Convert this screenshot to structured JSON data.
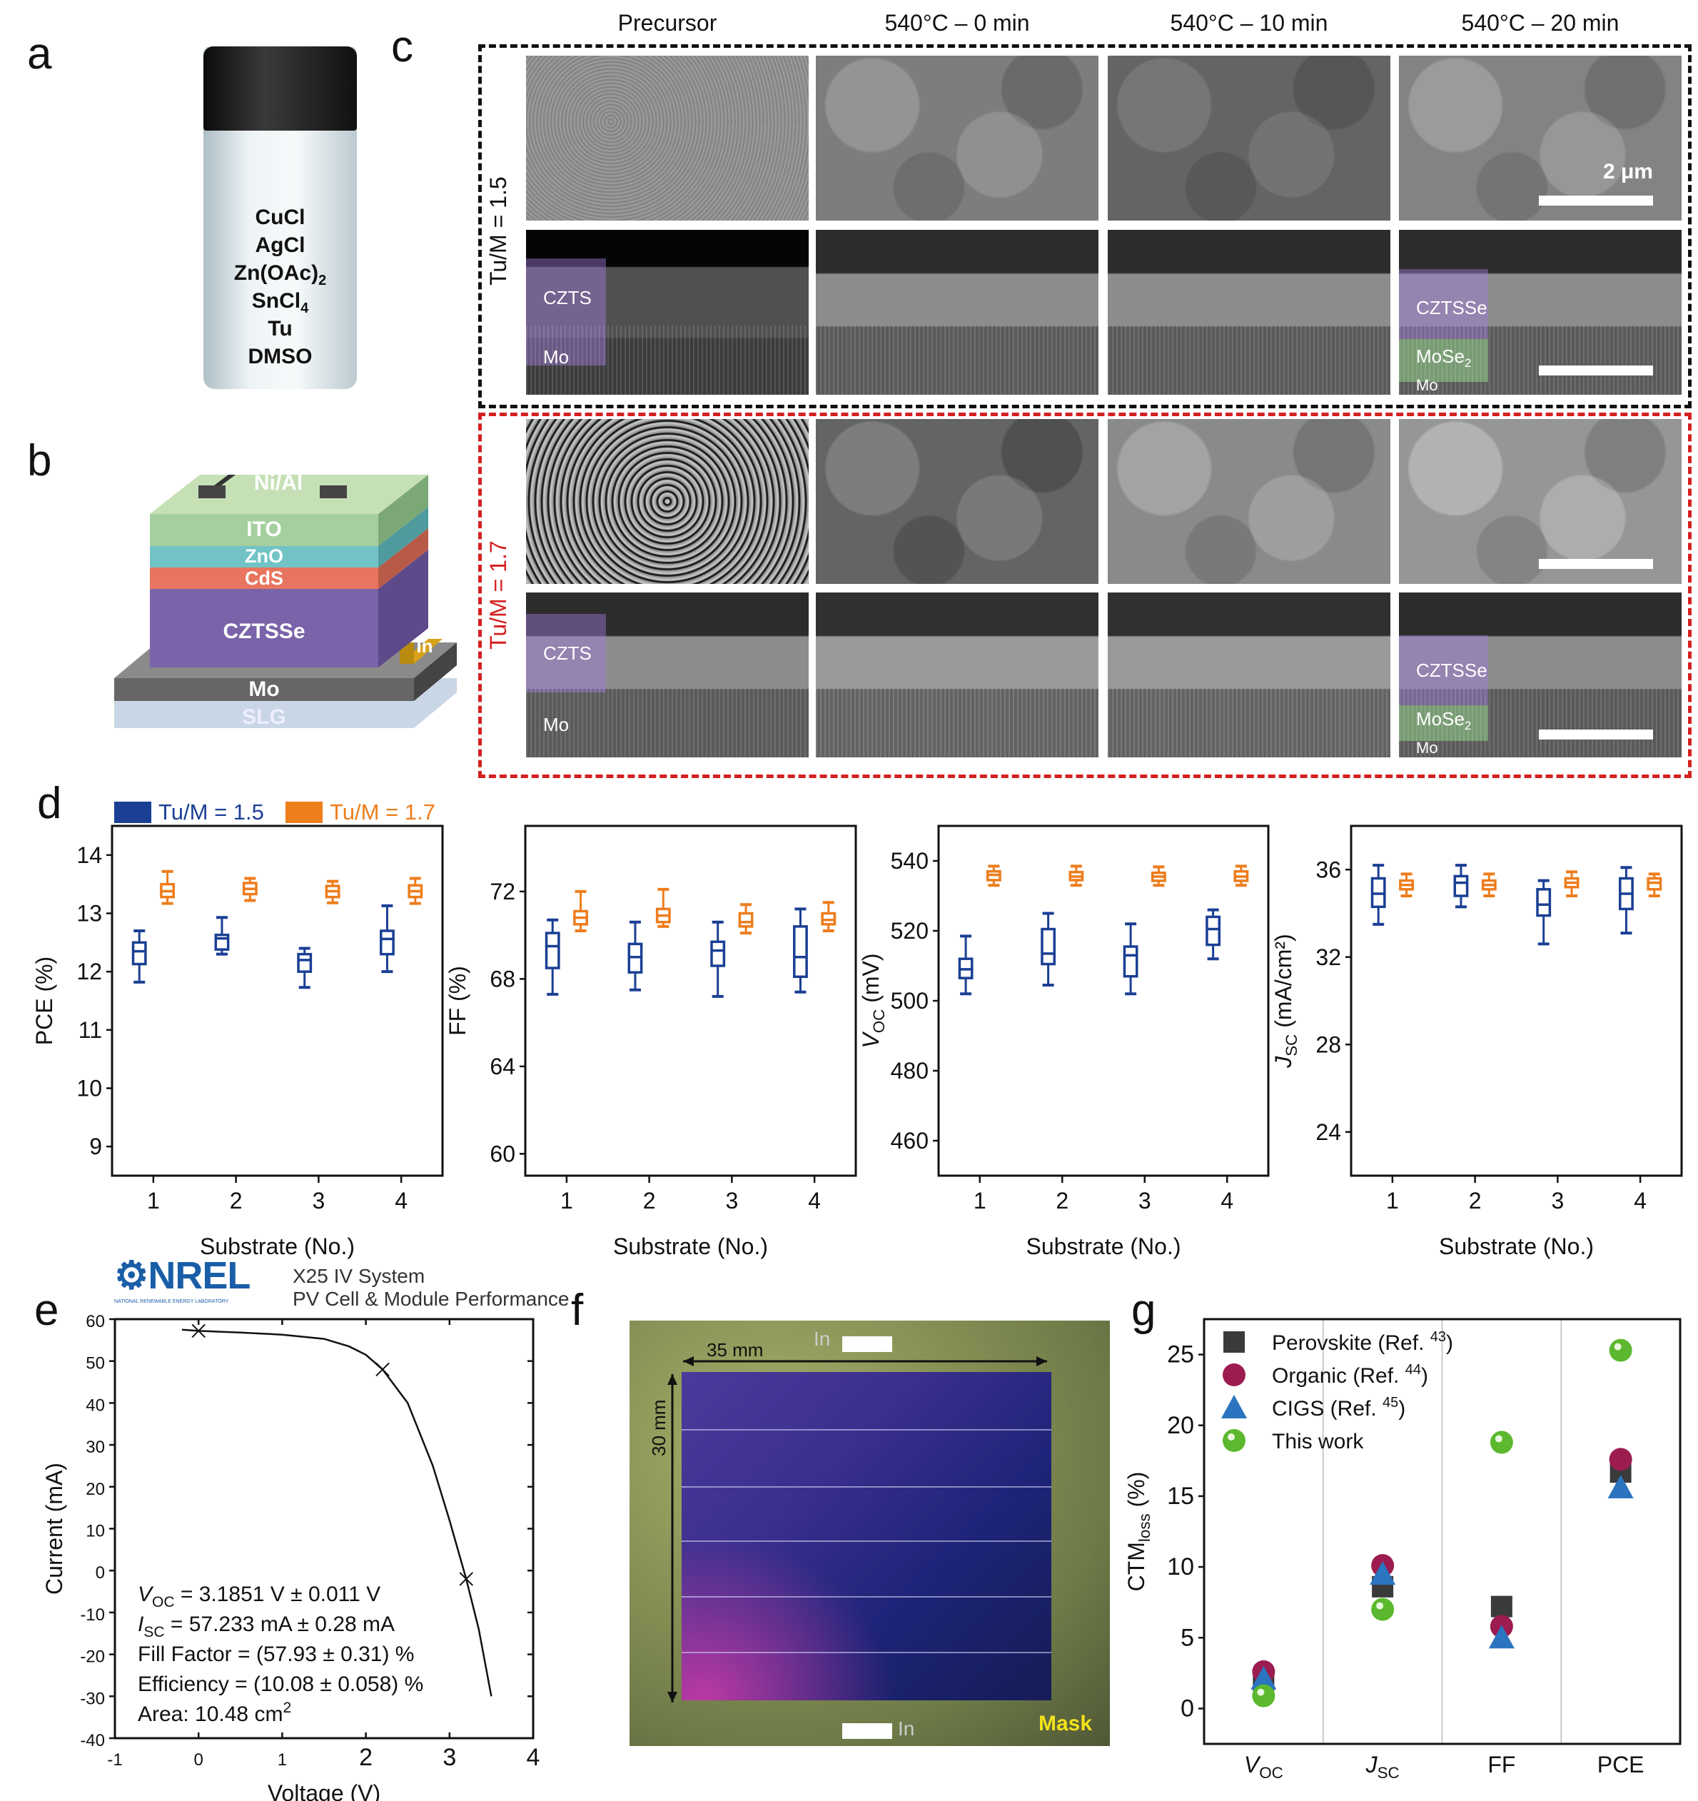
{
  "panels": {
    "a": "a",
    "b": "b",
    "c": "c",
    "d": "d",
    "e": "e",
    "f": "f",
    "g": "g"
  },
  "vial": {
    "lines": [
      "CuCl",
      "AgCl",
      "Zn(OAc)",
      "SnCl",
      "Tu",
      "DMSO"
    ],
    "subs": {
      "zn": "2",
      "sn": "4"
    }
  },
  "device": {
    "layers": [
      "Ni/Al",
      "ITO",
      "ZnO",
      "CdS",
      "CZTSSe",
      "In",
      "Mo",
      "SLG"
    ],
    "colors": {
      "top": "#b9d7a9",
      "ito": "#a6cfa0",
      "zno": "#71c3c6",
      "cds": "#e8755f",
      "czts": "#7a63a9",
      "in": "#d8a21b",
      "mo": "#6a6a6a",
      "slg": "#c9d6e6"
    }
  },
  "sem": {
    "columns": [
      "Precursor",
      "540°C – 0 min",
      "540°C – 10 min",
      "540°C – 20 min"
    ],
    "group1": "Tu/M = 1.5",
    "group2": "Tu/M = 1.7",
    "group_colors": {
      "g1": "#111111",
      "g2": "#d42020"
    },
    "labels": {
      "czts": "CZTS",
      "mo": "Mo",
      "cztsse": "CZTSSe",
      "mose": "MoSe",
      "mose_sub": "2"
    },
    "scalebar": "2 μm"
  },
  "legend_d": [
    {
      "name": "Tu/M = 1.5",
      "color": "#1a3f94"
    },
    {
      "name": "Tu/M = 1.7",
      "color": "#ee7d1c"
    }
  ],
  "nrel": {
    "logo": "NREL",
    "logo_sub": "NATIONAL RENEWABLE ENERGY LABORATORY",
    "system": "X25 IV System",
    "subtitle": "PV Cell & Module Performance"
  },
  "module": {
    "width_label": "35 mm",
    "height_label": "30 mm",
    "in_top": "In",
    "in_bottom": "In",
    "mask": "Mask"
  },
  "chart_data": [
    {
      "id": "pce",
      "type": "box",
      "categories": [
        "1",
        "2",
        "3",
        "4"
      ],
      "xlabel": "Substrate (No.)",
      "ylabel": {
        "main": "PCE (%)"
      },
      "ylim": [
        8.5,
        14.5
      ],
      "yticks": [
        9,
        10,
        11,
        12,
        13,
        14
      ],
      "series": [
        {
          "name": "Tu/M = 1.5",
          "color": "#1a3f94",
          "boxes": [
            [
              11.82,
              12.13,
              12.35,
              12.5,
              12.7
            ],
            [
              12.3,
              12.38,
              12.57,
              12.63,
              12.93
            ],
            [
              11.73,
              12.0,
              12.2,
              12.3,
              12.4
            ],
            [
              12.0,
              12.3,
              12.56,
              12.7,
              13.13
            ]
          ]
        },
        {
          "name": "Tu/M = 1.7",
          "color": "#ee7d1c",
          "boxes": [
            [
              13.17,
              13.28,
              13.38,
              13.5,
              13.72
            ],
            [
              13.22,
              13.33,
              13.42,
              13.52,
              13.6
            ],
            [
              13.18,
              13.28,
              13.38,
              13.47,
              13.55
            ],
            [
              13.17,
              13.28,
              13.38,
              13.48,
              13.6
            ]
          ]
        }
      ]
    },
    {
      "id": "ff",
      "type": "box",
      "categories": [
        "1",
        "2",
        "3",
        "4"
      ],
      "xlabel": "Substrate (No.)",
      "ylabel": {
        "main": "FF (%)"
      },
      "ylim": [
        59,
        75
      ],
      "yticks": [
        60,
        64,
        68,
        72
      ],
      "series": [
        {
          "name": "Tu/M = 1.5",
          "color": "#1a3f94",
          "boxes": [
            [
              67.3,
              68.5,
              69.5,
              70.1,
              70.7
            ],
            [
              67.5,
              68.3,
              69.0,
              69.6,
              70.6
            ],
            [
              67.2,
              68.6,
              69.3,
              69.7,
              70.6
            ],
            [
              67.4,
              68.1,
              69.0,
              70.4,
              71.2
            ]
          ]
        },
        {
          "name": "Tu/M = 1.7",
          "color": "#ee7d1c",
          "boxes": [
            [
              70.2,
              70.5,
              70.8,
              71.1,
              72.0
            ],
            [
              70.4,
              70.6,
              70.9,
              71.2,
              72.1
            ],
            [
              70.1,
              70.4,
              70.6,
              71.0,
              71.4
            ],
            [
              70.2,
              70.5,
              70.7,
              71.0,
              71.5
            ]
          ]
        }
      ]
    },
    {
      "id": "voc",
      "type": "box",
      "categories": [
        "1",
        "2",
        "3",
        "4"
      ],
      "xlabel": "Substrate (No.)",
      "ylabel": {
        "main": "V",
        "sub": "OC",
        "rest": " (mV)"
      },
      "ylim": [
        450,
        550
      ],
      "yticks": [
        460,
        480,
        500,
        520,
        540
      ],
      "series": [
        {
          "name": "Tu/M = 1.5",
          "color": "#1a3f94",
          "boxes": [
            [
              502,
              506.5,
              509,
              512,
              518.5
            ],
            [
              504.5,
              510.5,
              513.5,
              520.5,
              525
            ],
            [
              502,
              507,
              513,
              515.5,
              522
            ],
            [
              512,
              516,
              520.5,
              524,
              526
            ]
          ]
        },
        {
          "name": "Tu/M = 1.7",
          "color": "#ee7d1c",
          "boxes": [
            [
              533,
              534.5,
              536,
              537,
              538.5
            ],
            [
              533,
              534.5,
              535.5,
              536.8,
              538.5
            ],
            [
              533,
              534.3,
              535.5,
              536.6,
              538.3
            ],
            [
              533,
              534.3,
              535.5,
              537,
              538.5
            ]
          ]
        }
      ]
    },
    {
      "id": "jsc",
      "type": "box",
      "categories": [
        "1",
        "2",
        "3",
        "4"
      ],
      "xlabel": "Substrate (No.)",
      "ylabel": {
        "main": "J",
        "sub": "SC",
        "rest": " (mA/cm²)"
      },
      "ylim": [
        22,
        38
      ],
      "yticks": [
        24,
        28,
        32,
        36
      ],
      "series": [
        {
          "name": "Tu/M = 1.5",
          "color": "#1a3f94",
          "boxes": [
            [
              33.5,
              34.3,
              34.9,
              35.6,
              36.2
            ],
            [
              34.3,
              34.8,
              35.4,
              35.7,
              36.2
            ],
            [
              32.6,
              33.9,
              34.4,
              35.1,
              35.5
            ],
            [
              33.1,
              34.2,
              34.9,
              35.6,
              36.1
            ]
          ]
        },
        {
          "name": "Tu/M = 1.7",
          "color": "#ee7d1c",
          "boxes": [
            [
              34.8,
              35.1,
              35.3,
              35.5,
              35.8
            ],
            [
              34.8,
              35.1,
              35.3,
              35.5,
              35.8
            ],
            [
              34.8,
              35.2,
              35.4,
              35.6,
              35.9
            ],
            [
              34.8,
              35.1,
              35.4,
              35.6,
              35.8
            ]
          ]
        }
      ]
    },
    {
      "id": "iv",
      "type": "line",
      "xlabel": "Voltage (V)",
      "ylabel": {
        "main": "Current (mA)"
      },
      "xlim": [
        -1,
        4
      ],
      "ylim": [
        -40,
        60
      ],
      "xticks": [
        -1,
        0,
        1,
        2,
        3,
        4
      ],
      "yticks": [
        -40,
        -30,
        -20,
        -10,
        0,
        10,
        20,
        30,
        40,
        50,
        60
      ],
      "x": [
        -0.2,
        0,
        0.5,
        1,
        1.5,
        1.8,
        2,
        2.2,
        2.5,
        2.8,
        3.0,
        3.2,
        3.35,
        3.5
      ],
      "y": [
        57.5,
        57.2,
        56.8,
        56.3,
        55.3,
        53.5,
        51.5,
        48,
        40,
        25,
        12,
        -2,
        -14,
        -30
      ],
      "markers": {
        "x": [
          0,
          2.2,
          3.2
        ],
        "y": [
          57.2,
          48,
          -2
        ]
      },
      "annotations": [
        {
          "main": "V",
          "sub": "OC",
          "rest": " = 3.1851 V ± 0.011 V"
        },
        {
          "main": "I",
          "sub": "SC",
          "rest": " = 57.233 mA ± 0.28 mA"
        },
        {
          "main": "Fill Factor = (57.93 ± 0.31) %"
        },
        {
          "main": "Efficiency = (10.08 ± 0.058) %"
        },
        {
          "main": "Area: 10.48 cm",
          "sup": "2"
        }
      ]
    },
    {
      "id": "ctm",
      "type": "scatter",
      "categories": [
        {
          "main": "V",
          "sub": "OC"
        },
        {
          "main": "J",
          "sub": "SC"
        },
        {
          "main": "FF"
        },
        {
          "main": "PCE"
        }
      ],
      "ylabel": {
        "main": "CTM",
        "sub": "loss",
        "rest": " (%)"
      },
      "ylim": [
        -2.5,
        27.5
      ],
      "yticks": [
        0,
        5,
        10,
        15,
        20,
        25
      ],
      "legend": "top-left",
      "series": [
        {
          "name": "Perovskite (Ref. ",
          "ref": "43",
          "marker": "square",
          "color": "#3a3a3a",
          "values": [
            2.0,
            8.6,
            7.2,
            16.7
          ]
        },
        {
          "name": "Organic (Ref. ",
          "ref": "44",
          "marker": "circle",
          "color": "#9c1c4f",
          "values": [
            2.6,
            10.1,
            5.8,
            17.6
          ]
        },
        {
          "name": "CIGS (Ref. ",
          "ref": "45",
          "marker": "triangle",
          "color": "#2a74c0",
          "values": [
            2.1,
            9.5,
            5.0,
            15.6
          ]
        },
        {
          "name": "This work",
          "marker": "sphere",
          "color": "#5cb82e",
          "values": [
            0.9,
            7.0,
            18.8,
            25.3
          ]
        }
      ]
    }
  ]
}
